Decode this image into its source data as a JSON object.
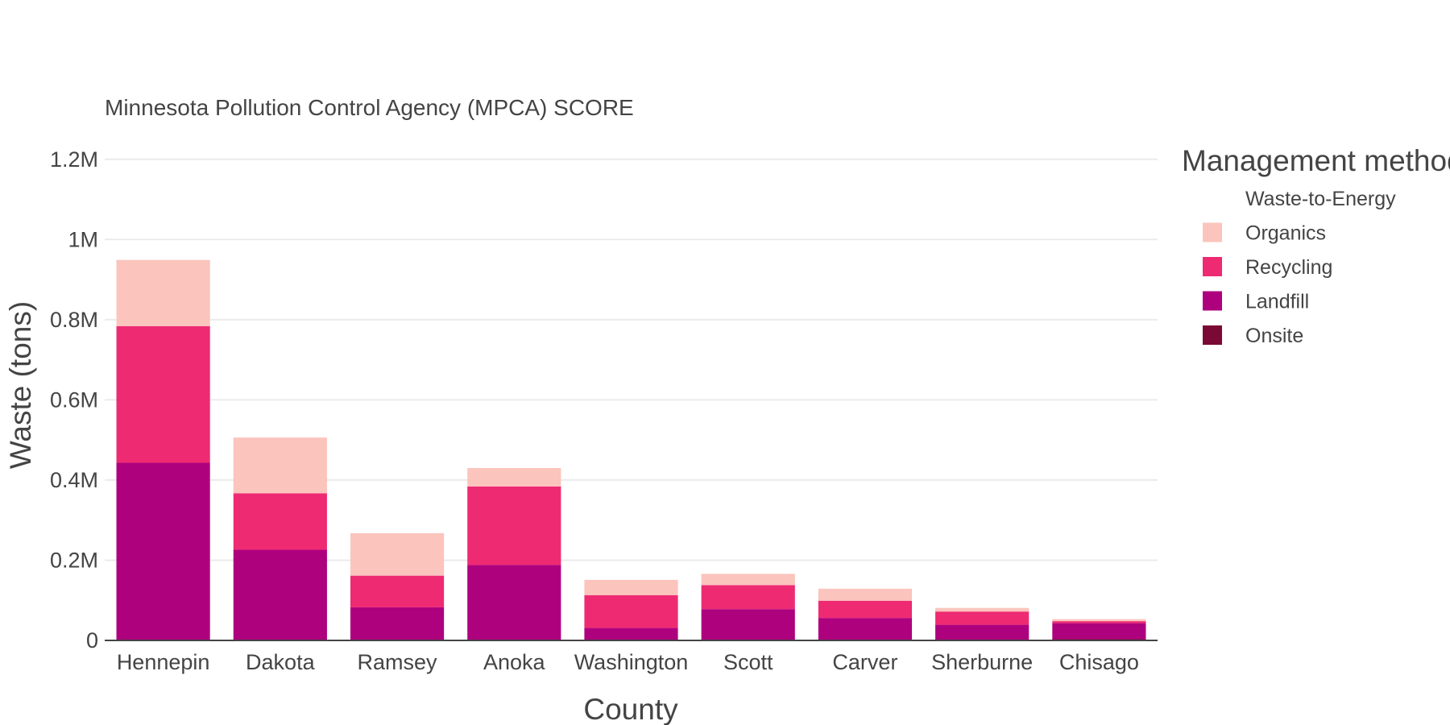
{
  "chart_data": {
    "type": "bar",
    "stacked": true,
    "title": "Minnesota Pollution Control Agency (MPCA) SCORE",
    "xlabel": "County",
    "ylabel": "Waste (tons)",
    "ylim": [
      0,
      1300000
    ],
    "yticks": [
      0,
      200000,
      400000,
      600000,
      800000,
      1000000,
      1200000
    ],
    "ytick_labels": [
      "0",
      "0.2M",
      "0.4M",
      "0.6M",
      "0.8M",
      "1M",
      "1.2M"
    ],
    "grid": true,
    "legend_title": "Management method",
    "legend_position": "right",
    "categories": [
      "Hennepin",
      "Dakota",
      "Ramsey",
      "Anoka",
      "Washington",
      "Scott",
      "Carver",
      "Sherburne",
      "Chisago"
    ],
    "series": [
      {
        "name": "Onsite",
        "color": "#7a0a35",
        "values": [
          1000,
          1000,
          500,
          1000,
          1000,
          1000,
          1000,
          2000,
          3000
        ]
      },
      {
        "name": "Landfill",
        "color": "#ae017e",
        "values": [
          442000,
          225000,
          82000,
          187000,
          30000,
          77000,
          55000,
          37000,
          40000
        ]
      },
      {
        "name": "Recycling",
        "color": "#ee2a72",
        "values": [
          341000,
          141000,
          79000,
          196000,
          82000,
          60000,
          43000,
          33000,
          5000
        ]
      },
      {
        "name": "Organics",
        "color": "#fbc4bd",
        "values": [
          165000,
          139000,
          106000,
          46000,
          38000,
          28000,
          30000,
          9000,
          5000
        ]
      },
      {
        "name": "Waste-to-Energy",
        "color": "#ffffff",
        "values": [
          0,
          0,
          0,
          0,
          0,
          0,
          0,
          0,
          0
        ]
      }
    ]
  }
}
